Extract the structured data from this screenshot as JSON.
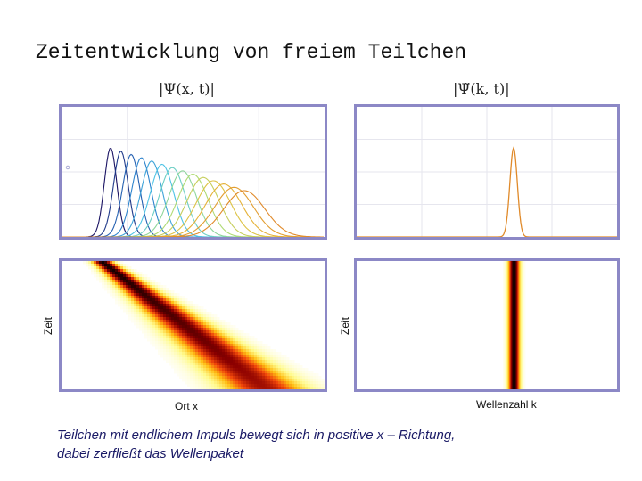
{
  "title": "Zeitentwicklung von freiem Teilchen",
  "panels": {
    "psi_x_label": "|Ψ(x, t)|",
    "psi_k_label": "|Ψ̃(k, t)|",
    "y_label_left": "Zeit",
    "y_label_right": "Zeit",
    "x_label_left": "Ort x",
    "x_label_right": "Wellenzahl k"
  },
  "caption": {
    "line1": "Teilchen mit endlichem Impuls bewegt sich in positive x – Richtung,",
    "line2": "dabei zerfließt das Wellenpaket"
  },
  "colors": {
    "frame": "#8C88C6",
    "curve_start": "#1b1464",
    "curve_end": "#e08a2a",
    "k_curve": "#e08a2a"
  },
  "physics": {
    "curve_count": 14,
    "packet_moves_direction": "+x",
    "packet_spreads": true,
    "momentum_distribution_constant": true
  }
}
